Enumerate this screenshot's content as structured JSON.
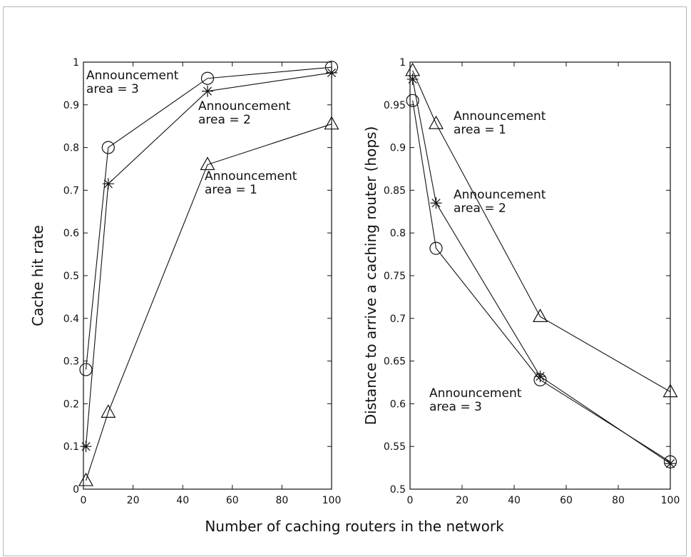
{
  "figure": {
    "shared_xlabel": "Number of caching routers in the network"
  },
  "chart_data": [
    {
      "type": "line",
      "title": "",
      "xlabel": "",
      "ylabel": "Cache hit rate",
      "xlim": [
        0,
        100
      ],
      "ylim": [
        0,
        1
      ],
      "xticks": [
        0,
        20,
        40,
        60,
        80,
        100
      ],
      "yticks": [
        0,
        0.1,
        0.2,
        0.3,
        0.4,
        0.5,
        0.6,
        0.7,
        0.8,
        0.9,
        1
      ],
      "ytick_labels": [
        "0",
        "0.1",
        "0.2",
        "0.3",
        "0.4",
        "0.5",
        "0.6",
        "0.7",
        "0.8",
        "0.9",
        "1"
      ],
      "x": [
        1,
        10,
        50,
        100
      ],
      "grid": false,
      "series": [
        {
          "name": "Announcement area = 3",
          "marker": "circle",
          "values": [
            0.28,
            0.8,
            0.962,
            0.988
          ]
        },
        {
          "name": "Announcement area = 2",
          "marker": "star",
          "values": [
            0.1,
            0.715,
            0.932,
            0.975
          ]
        },
        {
          "name": "Announcement area = 1",
          "marker": "triangle",
          "values": [
            0.02,
            0.18,
            0.76,
            0.855
          ]
        }
      ],
      "annotations": [
        {
          "line1": "Announcement",
          "line2": "area = 3",
          "series": "Announcement area = 3"
        },
        {
          "line1": "Announcement",
          "line2": "area = 2",
          "series": "Announcement area = 2"
        },
        {
          "line1": "Announcement",
          "line2": "area = 1",
          "series": "Announcement area = 1"
        }
      ]
    },
    {
      "type": "line",
      "title": "",
      "xlabel": "",
      "ylabel": "Distance to arrive a caching router (hops)",
      "xlim": [
        0,
        100
      ],
      "ylim": [
        0.5,
        1
      ],
      "xticks": [
        0,
        20,
        40,
        60,
        80,
        100
      ],
      "yticks": [
        0.5,
        0.55,
        0.6,
        0.65,
        0.7,
        0.75,
        0.8,
        0.85,
        0.9,
        0.95,
        1
      ],
      "ytick_labels": [
        "0.5",
        "0.55",
        "0.6",
        "0.65",
        "0.7",
        "0.75",
        "0.8",
        "0.85",
        "0.9",
        "0.95",
        "1"
      ],
      "x": [
        1,
        10,
        50,
        100
      ],
      "grid": false,
      "series": [
        {
          "name": "Announcement area = 1",
          "marker": "triangle",
          "values": [
            0.99,
            0.928,
            0.702,
            0.614
          ]
        },
        {
          "name": "Announcement area = 2",
          "marker": "star",
          "values": [
            0.98,
            0.835,
            0.632,
            0.53
          ]
        },
        {
          "name": "Announcement area = 3",
          "marker": "circle",
          "values": [
            0.955,
            0.782,
            0.628,
            0.532
          ]
        }
      ],
      "annotations": [
        {
          "line1": "Announcement",
          "line2": "area = 1",
          "series": "Announcement area = 1"
        },
        {
          "line1": "Announcement",
          "line2": "area = 2",
          "series": "Announcement area = 2"
        },
        {
          "line1": "Announcement",
          "line2": "area = 3",
          "series": "Announcement area = 3"
        }
      ]
    }
  ]
}
